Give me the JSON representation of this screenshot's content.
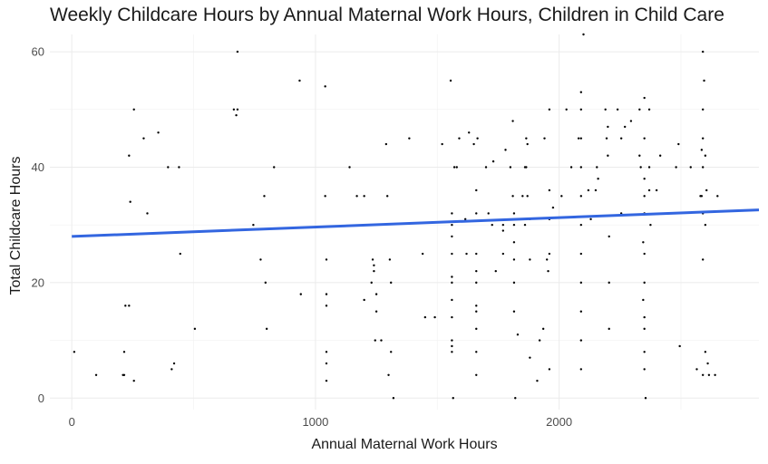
{
  "chart_data": {
    "type": "scatter",
    "title": "Weekly Childcare Hours by Annual Maternal Work Hours, Children in Child Care",
    "xlabel": "Annual Maternal Work Hours",
    "ylabel": "Total Childcare Hours",
    "xlim": [
      -90,
      2820
    ],
    "ylim": [
      -2,
      63
    ],
    "x_ticks": [
      0,
      1000,
      2000
    ],
    "x_minor": [
      500,
      1500,
      2500
    ],
    "y_ticks": [
      0,
      20,
      40,
      60
    ],
    "y_minor": [
      10,
      30,
      50
    ],
    "grid": true,
    "point_color": "#000000",
    "fit_line": {
      "color": "#3366e0",
      "x": [
        0,
        2820
      ],
      "y": [
        28,
        32.6
      ]
    },
    "series": [
      {
        "points": [
          [
            10,
            8
          ],
          [
            100,
            4
          ],
          [
            210,
            4
          ],
          [
            215,
            4
          ],
          [
            215,
            8
          ],
          [
            220,
            16
          ],
          [
            235,
            16
          ],
          [
            235,
            42
          ],
          [
            240,
            34
          ],
          [
            255,
            50
          ],
          [
            255,
            3
          ],
          [
            295,
            45
          ],
          [
            310,
            32
          ],
          [
            355,
            46
          ],
          [
            395,
            40
          ],
          [
            410,
            5
          ],
          [
            420,
            6
          ],
          [
            440,
            40
          ],
          [
            445,
            25
          ],
          [
            505,
            12
          ],
          [
            665,
            50
          ],
          [
            675,
            49
          ],
          [
            680,
            60
          ],
          [
            680,
            50
          ],
          [
            745,
            30
          ],
          [
            775,
            24
          ],
          [
            790,
            35
          ],
          [
            795,
            20
          ],
          [
            800,
            12
          ],
          [
            830,
            40
          ],
          [
            935,
            55
          ],
          [
            940,
            18
          ],
          [
            1040,
            54
          ],
          [
            1040,
            35
          ],
          [
            1045,
            24
          ],
          [
            1045,
            18
          ],
          [
            1045,
            16
          ],
          [
            1045,
            8
          ],
          [
            1045,
            6
          ],
          [
            1045,
            3
          ],
          [
            1140,
            40
          ],
          [
            1170,
            35
          ],
          [
            1200,
            35
          ],
          [
            1200,
            17
          ],
          [
            1230,
            20
          ],
          [
            1235,
            24
          ],
          [
            1240,
            23
          ],
          [
            1240,
            22
          ],
          [
            1245,
            10
          ],
          [
            1250,
            18
          ],
          [
            1250,
            15
          ],
          [
            1270,
            10
          ],
          [
            1290,
            44
          ],
          [
            1295,
            35
          ],
          [
            1300,
            4
          ],
          [
            1305,
            24
          ],
          [
            1310,
            20
          ],
          [
            1310,
            8
          ],
          [
            1320,
            0
          ],
          [
            1385,
            45
          ],
          [
            1440,
            25
          ],
          [
            1450,
            14
          ],
          [
            1490,
            14
          ],
          [
            1520,
            44
          ],
          [
            1555,
            55
          ],
          [
            1560,
            32
          ],
          [
            1560,
            30
          ],
          [
            1560,
            28
          ],
          [
            1560,
            25
          ],
          [
            1560,
            21
          ],
          [
            1560,
            20
          ],
          [
            1560,
            17
          ],
          [
            1560,
            14
          ],
          [
            1560,
            10
          ],
          [
            1560,
            9
          ],
          [
            1560,
            8
          ],
          [
            1565,
            0
          ],
          [
            1570,
            40
          ],
          [
            1580,
            40
          ],
          [
            1590,
            45
          ],
          [
            1615,
            31
          ],
          [
            1620,
            25
          ],
          [
            1630,
            46
          ],
          [
            1650,
            44
          ],
          [
            1660,
            36
          ],
          [
            1660,
            32
          ],
          [
            1660,
            25
          ],
          [
            1660,
            22
          ],
          [
            1660,
            20
          ],
          [
            1660,
            16
          ],
          [
            1660,
            15
          ],
          [
            1660,
            12
          ],
          [
            1660,
            8
          ],
          [
            1660,
            4
          ],
          [
            1665,
            45
          ],
          [
            1700,
            40
          ],
          [
            1710,
            32
          ],
          [
            1725,
            30
          ],
          [
            1730,
            41
          ],
          [
            1740,
            22
          ],
          [
            1770,
            30
          ],
          [
            1770,
            29
          ],
          [
            1770,
            25
          ],
          [
            1780,
            43
          ],
          [
            1800,
            40
          ],
          [
            1810,
            48
          ],
          [
            1810,
            35
          ],
          [
            1815,
            32
          ],
          [
            1815,
            30
          ],
          [
            1815,
            27
          ],
          [
            1815,
            24
          ],
          [
            1815,
            20
          ],
          [
            1815,
            15
          ],
          [
            1820,
            0
          ],
          [
            1830,
            11
          ],
          [
            1850,
            35
          ],
          [
            1860,
            40
          ],
          [
            1860,
            30
          ],
          [
            1865,
            45
          ],
          [
            1865,
            40
          ],
          [
            1870,
            44
          ],
          [
            1870,
            35
          ],
          [
            1880,
            31
          ],
          [
            1880,
            24
          ],
          [
            1880,
            7
          ],
          [
            1910,
            3
          ],
          [
            1920,
            10
          ],
          [
            1935,
            12
          ],
          [
            1940,
            45
          ],
          [
            1950,
            24
          ],
          [
            1955,
            22
          ],
          [
            1960,
            50
          ],
          [
            1960,
            36
          ],
          [
            1960,
            31
          ],
          [
            1960,
            25
          ],
          [
            1960,
            5
          ],
          [
            1975,
            33
          ],
          [
            2010,
            35
          ],
          [
            2030,
            50
          ],
          [
            2050,
            40
          ],
          [
            2080,
            45
          ],
          [
            2090,
            53
          ],
          [
            2090,
            50
          ],
          [
            2090,
            45
          ],
          [
            2090,
            40
          ],
          [
            2090,
            35
          ],
          [
            2090,
            30
          ],
          [
            2090,
            25
          ],
          [
            2090,
            20
          ],
          [
            2090,
            15
          ],
          [
            2090,
            10
          ],
          [
            2090,
            5
          ],
          [
            2100,
            63
          ],
          [
            2120,
            36
          ],
          [
            2130,
            31
          ],
          [
            2150,
            36
          ],
          [
            2155,
            40
          ],
          [
            2160,
            38
          ],
          [
            2190,
            50
          ],
          [
            2195,
            45
          ],
          [
            2200,
            47
          ],
          [
            2200,
            42
          ],
          [
            2205,
            28
          ],
          [
            2205,
            20
          ],
          [
            2205,
            12
          ],
          [
            2240,
            50
          ],
          [
            2255,
            45
          ],
          [
            2255,
            32
          ],
          [
            2270,
            47
          ],
          [
            2295,
            48
          ],
          [
            2330,
            50
          ],
          [
            2330,
            42
          ],
          [
            2335,
            40
          ],
          [
            2345,
            27
          ],
          [
            2345,
            17
          ],
          [
            2350,
            52
          ],
          [
            2350,
            45
          ],
          [
            2350,
            38
          ],
          [
            2350,
            35
          ],
          [
            2350,
            32
          ],
          [
            2350,
            25
          ],
          [
            2350,
            20
          ],
          [
            2350,
            14
          ],
          [
            2350,
            12
          ],
          [
            2350,
            8
          ],
          [
            2350,
            5
          ],
          [
            2355,
            0
          ],
          [
            2370,
            50
          ],
          [
            2370,
            40
          ],
          [
            2370,
            36
          ],
          [
            2375,
            30
          ],
          [
            2400,
            36
          ],
          [
            2415,
            42
          ],
          [
            2480,
            40
          ],
          [
            2490,
            44
          ],
          [
            2495,
            9
          ],
          [
            2540,
            40
          ],
          [
            2565,
            5
          ],
          [
            2580,
            35
          ],
          [
            2585,
            43
          ],
          [
            2585,
            35
          ],
          [
            2590,
            60
          ],
          [
            2590,
            50
          ],
          [
            2590,
            45
          ],
          [
            2590,
            40
          ],
          [
            2590,
            32
          ],
          [
            2590,
            24
          ],
          [
            2590,
            4
          ],
          [
            2595,
            55
          ],
          [
            2600,
            42
          ],
          [
            2600,
            30
          ],
          [
            2600,
            8
          ],
          [
            2605,
            36
          ],
          [
            2610,
            6
          ],
          [
            2615,
            4
          ],
          [
            2650,
            35
          ],
          [
            2640,
            4
          ]
        ]
      }
    ]
  }
}
